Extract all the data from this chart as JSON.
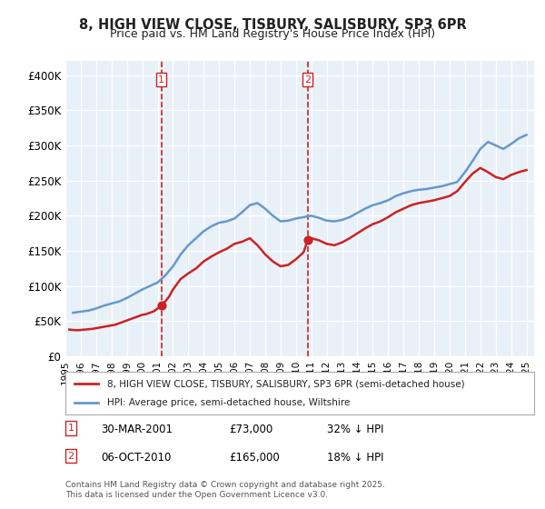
{
  "title": "8, HIGH VIEW CLOSE, TISBURY, SALISBURY, SP3 6PR",
  "subtitle": "Price paid vs. HM Land Registry's House Price Index (HPI)",
  "xlabel": "",
  "ylabel": "",
  "ylim": [
    0,
    420000
  ],
  "yticks": [
    0,
    50000,
    100000,
    150000,
    200000,
    250000,
    300000,
    350000,
    400000
  ],
  "ytick_labels": [
    "£0",
    "£50K",
    "£100K",
    "£150K",
    "£200K",
    "£250K",
    "£300K",
    "£350K",
    "£400K"
  ],
  "background_color": "#ffffff",
  "plot_bg_color": "#e8f0f8",
  "grid_color": "#ffffff",
  "hpi_color": "#6699cc",
  "price_color": "#cc2222",
  "sale1_date": "30-MAR-2001",
  "sale1_price": 73000,
  "sale1_label": "32% ↓ HPI",
  "sale2_date": "06-OCT-2010",
  "sale2_price": 165000,
  "sale2_label": "18% ↓ HPI",
  "sale1_x": 2001.24,
  "sale2_x": 2010.76,
  "legend_house": "8, HIGH VIEW CLOSE, TISBURY, SALISBURY, SP3 6PR (semi-detached house)",
  "legend_hpi": "HPI: Average price, semi-detached house, Wiltshire",
  "footer": "Contains HM Land Registry data © Crown copyright and database right 2025.\nThis data is licensed under the Open Government Licence v3.0.",
  "hpi_data": {
    "years": [
      1995.5,
      1996.0,
      1996.5,
      1997.0,
      1997.5,
      1998.0,
      1998.5,
      1999.0,
      1999.5,
      2000.0,
      2000.5,
      2001.0,
      2001.5,
      2002.0,
      2002.5,
      2003.0,
      2003.5,
      2004.0,
      2004.5,
      2005.0,
      2005.5,
      2006.0,
      2006.5,
      2007.0,
      2007.5,
      2008.0,
      2008.5,
      2009.0,
      2009.5,
      2010.0,
      2010.5,
      2011.0,
      2011.5,
      2012.0,
      2012.5,
      2013.0,
      2013.5,
      2014.0,
      2014.5,
      2015.0,
      2015.5,
      2016.0,
      2016.5,
      2017.0,
      2017.5,
      2018.0,
      2018.5,
      2019.0,
      2019.5,
      2020.0,
      2020.5,
      2021.0,
      2021.5,
      2022.0,
      2022.5,
      2023.0,
      2023.5,
      2024.0,
      2024.5,
      2025.0
    ],
    "values": [
      62000,
      63500,
      65000,
      68000,
      72000,
      75000,
      78000,
      83000,
      89000,
      95000,
      100000,
      105000,
      115000,
      128000,
      145000,
      158000,
      168000,
      178000,
      185000,
      190000,
      192000,
      196000,
      205000,
      215000,
      218000,
      210000,
      200000,
      192000,
      193000,
      196000,
      198000,
      200000,
      197000,
      193000,
      192000,
      194000,
      198000,
      204000,
      210000,
      215000,
      218000,
      222000,
      228000,
      232000,
      235000,
      237000,
      238000,
      240000,
      242000,
      245000,
      248000,
      262000,
      278000,
      295000,
      305000,
      300000,
      295000,
      302000,
      310000,
      315000
    ]
  },
  "price_data": {
    "years": [
      1995.25,
      1995.5,
      1995.75,
      1996.0,
      1996.25,
      1996.5,
      1996.75,
      1997.0,
      1997.25,
      1997.5,
      1997.75,
      1998.0,
      1998.25,
      1998.5,
      1998.75,
      1999.0,
      1999.25,
      1999.5,
      1999.75,
      2000.0,
      2000.25,
      2000.5,
      2000.75,
      2001.0,
      2001.24,
      2001.24,
      2001.5,
      2001.75,
      2002.0,
      2002.5,
      2003.0,
      2003.5,
      2004.0,
      2004.5,
      2005.0,
      2005.5,
      2006.0,
      2006.5,
      2007.0,
      2007.5,
      2008.0,
      2008.5,
      2009.0,
      2009.5,
      2010.0,
      2010.5,
      2010.76,
      2010.76,
      2011.0,
      2011.5,
      2012.0,
      2012.5,
      2013.0,
      2013.5,
      2014.0,
      2014.5,
      2015.0,
      2015.5,
      2016.0,
      2016.5,
      2017.0,
      2017.5,
      2018.0,
      2018.5,
      2019.0,
      2019.5,
      2020.0,
      2020.5,
      2021.0,
      2021.5,
      2022.0,
      2022.5,
      2023.0,
      2023.5,
      2024.0,
      2024.5,
      2025.0
    ],
    "values": [
      38000,
      37500,
      37000,
      37500,
      38000,
      38500,
      39000,
      40000,
      41000,
      42000,
      43000,
      44000,
      45000,
      47000,
      49000,
      51000,
      53000,
      55000,
      57000,
      59000,
      60000,
      62000,
      64000,
      68000,
      73000,
      73000,
      78000,
      85000,
      95000,
      110000,
      118000,
      125000,
      135000,
      142000,
      148000,
      153000,
      160000,
      163000,
      168000,
      158000,
      145000,
      135000,
      128000,
      130000,
      138000,
      148000,
      165000,
      165000,
      168000,
      165000,
      160000,
      158000,
      162000,
      168000,
      175000,
      182000,
      188000,
      192000,
      198000,
      205000,
      210000,
      215000,
      218000,
      220000,
      222000,
      225000,
      228000,
      235000,
      248000,
      260000,
      268000,
      262000,
      255000,
      252000,
      258000,
      262000,
      265000
    ]
  }
}
